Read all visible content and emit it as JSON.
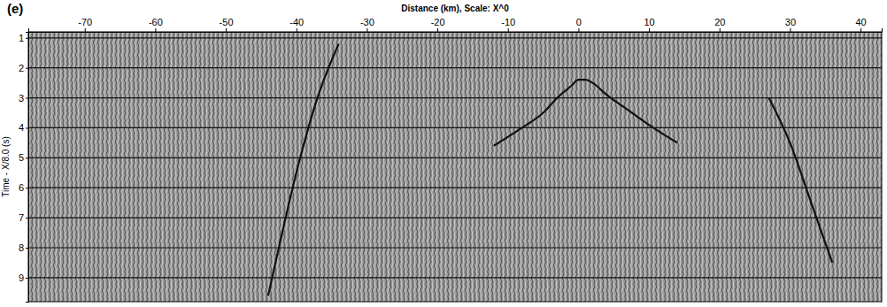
{
  "chart_data": {
    "type": "line",
    "title": "(e)",
    "x_label": "Distance (km), Scale: X^0",
    "y_label": "Time - X/8.0 (s)",
    "xlim": [
      -78,
      43
    ],
    "xticks": [
      -70,
      -60,
      -50,
      -40,
      -30,
      -20,
      -10,
      0,
      10,
      20,
      30,
      40
    ],
    "ylim": [
      0.8,
      9.8
    ],
    "yticks": [
      1,
      2,
      3,
      4,
      5,
      6,
      7,
      8,
      9
    ],
    "grid": true,
    "series": [
      {
        "color": "#111111",
        "line_style": "solid",
        "x": [
          -12,
          -8,
          -5,
          -3,
          -1,
          0,
          1,
          2,
          4,
          7,
          10,
          14
        ],
        "values": [
          4.6,
          4.0,
          3.5,
          3.0,
          2.6,
          2.4,
          2.4,
          2.5,
          2.9,
          3.4,
          3.9,
          4.5
        ]
      },
      {
        "color": "#111111",
        "line_style": "solid",
        "x": [
          -34,
          -37,
          -40,
          -42,
          -44
        ],
        "values": [
          1.2,
          3.0,
          5.5,
          7.5,
          9.6
        ]
      },
      {
        "color": "#111111",
        "line_style": "solid",
        "x": [
          27,
          30,
          33,
          36
        ],
        "values": [
          3.0,
          4.5,
          6.5,
          8.5
        ]
      }
    ]
  }
}
